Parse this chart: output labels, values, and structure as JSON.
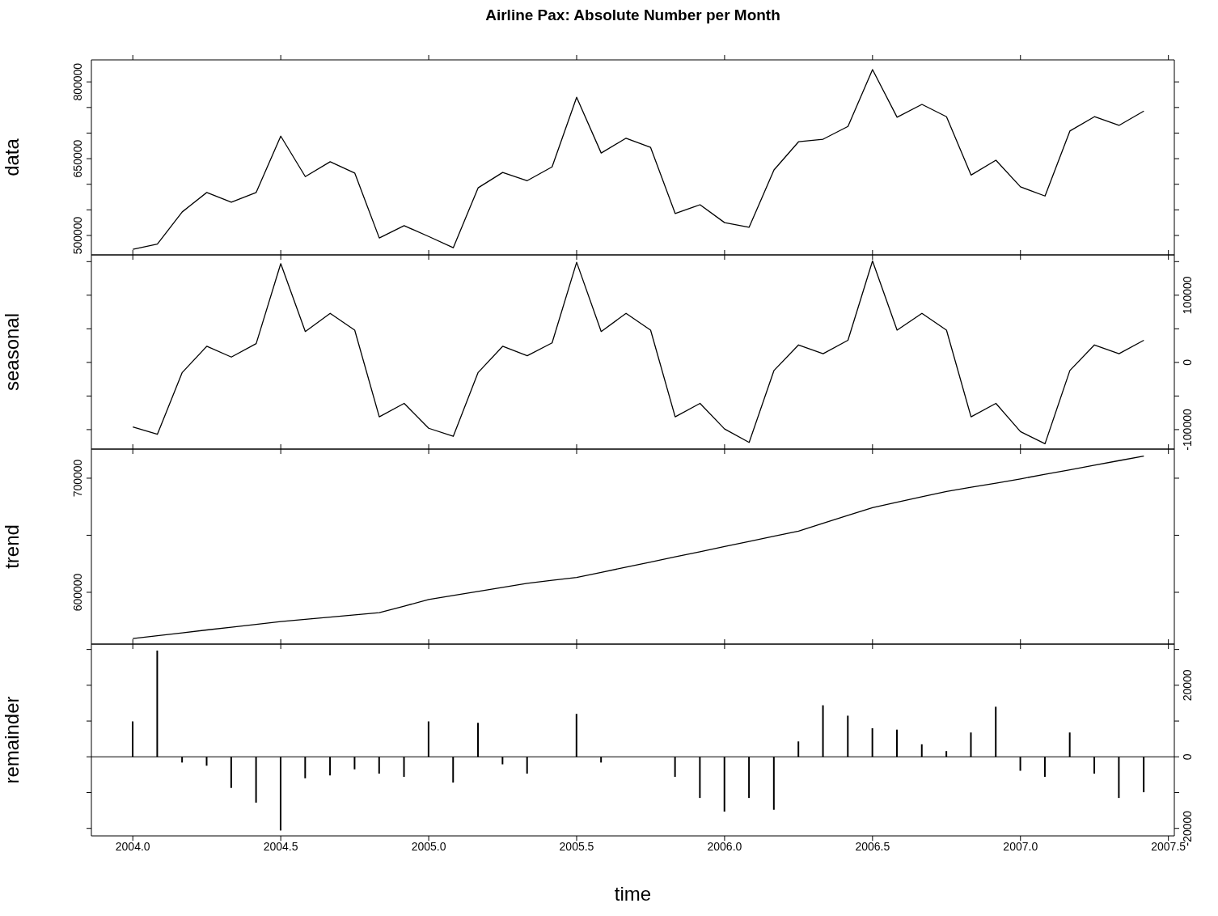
{
  "chart_data": [
    {
      "type": "line",
      "title": "Airline Pax: Absolute Number per Month",
      "ylabel": "data",
      "x": [
        2004,
        2004.083,
        2004.167,
        2004.25,
        2004.333,
        2004.417,
        2004.5,
        2004.583,
        2004.667,
        2004.75,
        2004.833,
        2004.917,
        2005,
        2005.083,
        2005.167,
        2005.25,
        2005.333,
        2005.417,
        2005.5,
        2005.583,
        2005.667,
        2005.75,
        2005.833,
        2005.917,
        2006,
        2006.083,
        2006.167,
        2006.25,
        2006.333,
        2006.417,
        2006.5,
        2006.583,
        2006.667,
        2006.75,
        2006.833,
        2006.917,
        2007,
        2007.083,
        2007.167,
        2007.25,
        2007.333,
        2007.417
      ],
      "series": [
        {
          "color": "#000000",
          "values": [
            473000,
            483000,
            546000,
            584000,
            565000,
            584000,
            694000,
            615000,
            644000,
            622000,
            495000,
            519000,
            498000,
            476000,
            593000,
            623000,
            607000,
            634000,
            770000,
            661000,
            690000,
            672000,
            543000,
            560000,
            525000,
            516000,
            628000,
            683000,
            688000,
            713000,
            824000,
            731000,
            756000,
            732000,
            618000,
            647000,
            595000,
            577000,
            704000,
            732000,
            715000,
            743000
          ]
        }
      ],
      "xlim": [
        2003.86,
        2007.52
      ],
      "xticks": [
        {
          "value": 2004,
          "label": null
        },
        {
          "value": 2004.5,
          "label": null
        },
        {
          "value": 2005,
          "label": null
        },
        {
          "value": 2005.5,
          "label": null
        },
        {
          "value": 2006,
          "label": null
        },
        {
          "value": 2006.5,
          "label": null
        },
        {
          "value": 2007,
          "label": null
        },
        {
          "value": 2007.5,
          "label": null
        }
      ],
      "ylim": [
        462000,
        843000
      ],
      "yticks": [
        500000,
        {
          "value": 550000,
          "label": null
        },
        {
          "value": 600000,
          "label": null
        },
        650000,
        {
          "value": 700000,
          "label": null
        },
        {
          "value": 750000,
          "label": null
        },
        800000
      ],
      "tick_labels": "y"
    },
    {
      "type": "line",
      "ylabel": "seasonal",
      "x": [
        2004,
        2004.083,
        2004.167,
        2004.25,
        2004.333,
        2004.417,
        2004.5,
        2004.583,
        2004.667,
        2004.75,
        2004.833,
        2004.917,
        2005,
        2005.083,
        2005.167,
        2005.25,
        2005.333,
        2005.417,
        2005.5,
        2005.583,
        2005.667,
        2005.75,
        2005.833,
        2005.917,
        2006,
        2006.083,
        2006.167,
        2006.25,
        2006.333,
        2006.417,
        2006.5,
        2006.583,
        2006.667,
        2006.75,
        2006.833,
        2006.917,
        2007,
        2007.083,
        2007.167,
        2007.25,
        2007.333,
        2007.417
      ],
      "series": [
        {
          "color": "#000000",
          "axis": "y2",
          "values": [
            -96000,
            -107000,
            -15000,
            24000,
            8000,
            28000,
            147000,
            46000,
            73000,
            48000,
            -81000,
            -61000,
            -98000,
            -110000,
            -15000,
            24000,
            10000,
            29000,
            149000,
            46000,
            73000,
            48000,
            -81000,
            -61000,
            -99000,
            -119000,
            -12000,
            26000,
            13000,
            33000,
            151000,
            48000,
            73000,
            48000,
            -81000,
            -61000,
            -103000,
            -121000,
            -12000,
            26000,
            13000,
            33000
          ]
        }
      ],
      "xlim": [
        2003.86,
        2007.52
      ],
      "xticks": [
        {
          "value": 2004,
          "label": null
        },
        {
          "value": 2004.5,
          "label": null
        },
        {
          "value": 2005,
          "label": null
        },
        {
          "value": 2005.5,
          "label": null
        },
        {
          "value": 2006,
          "label": null
        },
        {
          "value": 2006.5,
          "label": null
        },
        {
          "value": 2007,
          "label": null
        },
        {
          "value": 2007.5,
          "label": null
        }
      ],
      "y2lim": [
        -129000,
        160000
      ],
      "y2ticks": [
        -100000,
        {
          "value": -50000,
          "label": null
        },
        0,
        {
          "value": 50000,
          "label": null
        },
        100000,
        {
          "value": 150000,
          "label": null
        }
      ],
      "tick_labels": "y"
    },
    {
      "type": "line",
      "ylabel": "trend",
      "x": [
        2004,
        2004.083,
        2004.167,
        2004.25,
        2004.333,
        2004.417,
        2004.5,
        2004.583,
        2004.667,
        2004.75,
        2004.833,
        2004.917,
        2005,
        2005.083,
        2005.167,
        2005.25,
        2005.333,
        2005.417,
        2005.5,
        2005.583,
        2005.667,
        2005.75,
        2005.833,
        2005.917,
        2006,
        2006.083,
        2006.167,
        2006.25,
        2006.333,
        2006.417,
        2006.5,
        2006.583,
        2006.667,
        2006.75,
        2006.833,
        2006.917,
        2007,
        2007.083,
        2007.167,
        2007.25,
        2007.333,
        2007.417
      ],
      "series": [
        {
          "color": "#000000",
          "values": [
            559500,
            562000,
            564500,
            567000,
            569400,
            571900,
            574300,
            576300,
            578200,
            580200,
            582100,
            587900,
            593700,
            597300,
            600800,
            604400,
            607900,
            610500,
            613000,
            617500,
            622000,
            626500,
            631100,
            635600,
            640100,
            644600,
            649100,
            653600,
            660500,
            667400,
            674200,
            678900,
            683700,
            688400,
            692100,
            695700,
            699400,
            703400,
            707400,
            711400,
            715400,
            719400
          ]
        }
      ],
      "xlim": [
        2003.86,
        2007.52
      ],
      "xticks": [
        {
          "value": 2004,
          "label": null
        },
        {
          "value": 2004.5,
          "label": null
        },
        {
          "value": 2005,
          "label": null
        },
        {
          "value": 2005.5,
          "label": null
        },
        {
          "value": 2006,
          "label": null
        },
        {
          "value": 2006.5,
          "label": null
        },
        {
          "value": 2007,
          "label": null
        },
        {
          "value": 2007.5,
          "label": null
        }
      ],
      "ylim": [
        554600,
        725500
      ],
      "yticks": [
        600000,
        {
          "value": 650000,
          "label": null
        },
        700000
      ],
      "tick_labels": "y"
    },
    {
      "type": "bar",
      "ylabel": "remainder",
      "xlabel": "time",
      "x": [
        2004,
        2004.083,
        2004.167,
        2004.25,
        2004.333,
        2004.417,
        2004.5,
        2004.583,
        2004.667,
        2004.75,
        2004.833,
        2004.917,
        2005,
        2005.083,
        2005.167,
        2005.25,
        2005.333,
        2005.417,
        2005.5,
        2005.583,
        2005.667,
        2005.75,
        2005.833,
        2005.917,
        2006,
        2006.083,
        2006.167,
        2006.25,
        2006.333,
        2006.417,
        2006.5,
        2006.583,
        2006.667,
        2006.75,
        2006.833,
        2006.917,
        2007,
        2007.083,
        2007.167,
        2007.25,
        2007.333,
        2007.417
      ],
      "series": [
        {
          "color": "#000000",
          "axis": "y2",
          "values": [
            9900,
            29700,
            -1600,
            -2500,
            -8700,
            -12800,
            -20600,
            -6000,
            -5200,
            -3500,
            -4700,
            -5600,
            9900,
            -7200,
            9500,
            -2100,
            -4700,
            0,
            12000,
            -1600,
            0,
            null,
            -5600,
            -11500,
            -15300,
            -11500,
            -14800,
            4300,
            14400,
            11500,
            8000,
            7600,
            3500,
            1600,
            6800,
            14000,
            -3900,
            -5600,
            6800,
            -4700,
            -11500,
            -9900
          ]
        }
      ],
      "xlim": [
        2003.86,
        2007.52
      ],
      "xticks": [
        {
          "value": 2004,
          "label": "2004.0"
        },
        {
          "value": 2004.5,
          "label": "2004.5"
        },
        {
          "value": 2005,
          "label": "2005.0"
        },
        {
          "value": 2005.5,
          "label": "2005.5"
        },
        {
          "value": 2006,
          "label": "2006.0"
        },
        {
          "value": 2006.5,
          "label": "2006.5"
        },
        {
          "value": 2007,
          "label": "2007.0"
        },
        {
          "value": 2007.5,
          "label": "2007.5"
        }
      ],
      "y2lim": [
        -22100,
        31500
      ],
      "y2ticks": [
        -20000,
        {
          "value": -10000,
          "label": null
        },
        0,
        {
          "value": 10000,
          "label": null
        },
        20000,
        {
          "value": 30000,
          "label": null
        }
      ],
      "ref_lines": [
        {
          "axis": "y2",
          "value": 0,
          "color": "#000000"
        }
      ]
    }
  ]
}
